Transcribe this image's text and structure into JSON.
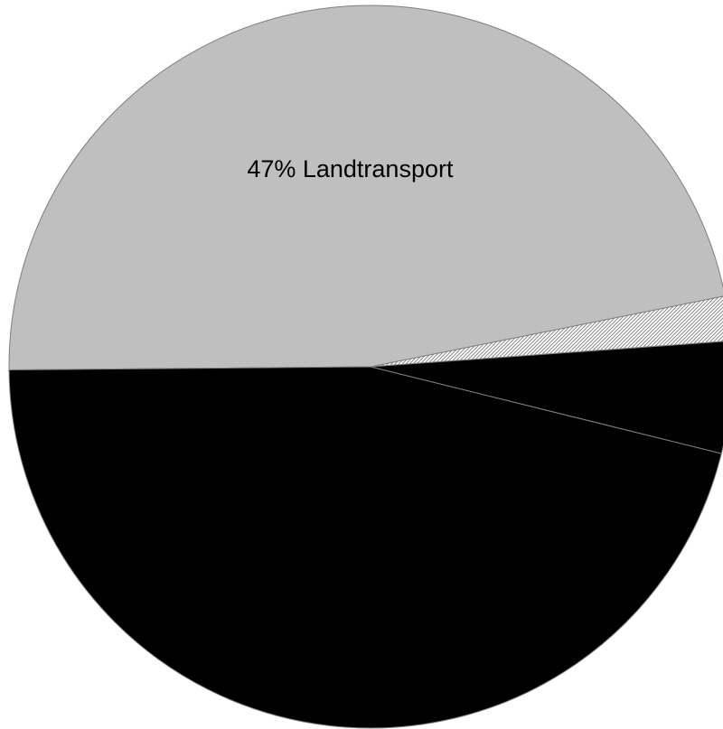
{
  "chart_data": {
    "type": "pie",
    "slices": [
      {
        "value": 47,
        "color": "#bfbfbf",
        "pattern": "none",
        "label": "47% Landtransport"
      },
      {
        "value": 2,
        "color": "#ffffff",
        "pattern": "diagonal-hatch",
        "label": ""
      },
      {
        "value": 5,
        "color": "#000000",
        "pattern": "none",
        "label": ""
      },
      {
        "value": 46,
        "color": "#000000",
        "pattern": "none",
        "label": ""
      }
    ],
    "start_angle_deg": 180.5,
    "direction": "clockwise",
    "slice_border_color": "#7f7f7f",
    "title": "",
    "legend": "none"
  }
}
